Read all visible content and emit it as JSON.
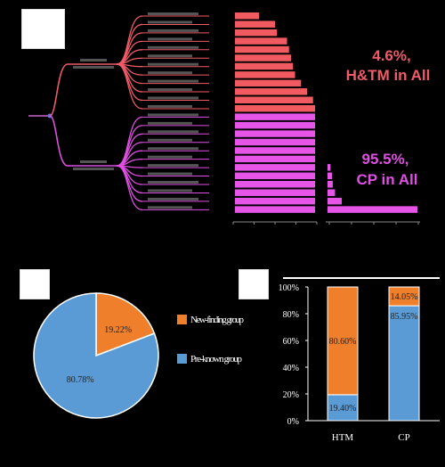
{
  "colors": {
    "htm": "#ef5b66",
    "cp": "#e04fe3",
    "orange": "#f07f2b",
    "blue": "#5b9bd5",
    "bar_top": "#f15a60",
    "bar_bottom": "#e655e8"
  },
  "annotations": {
    "htm_pct": "4.6%,",
    "htm_label": "H&TM in All",
    "cp_pct": "95.5%,",
    "cp_label": "CP in All"
  },
  "chart_data": [
    {
      "type": "bar",
      "orientation": "horizontal",
      "groups": [
        {
          "key": "htm",
          "count": 12
        },
        {
          "key": "cp",
          "count": 12
        }
      ],
      "values": [
        1.2,
        2.0,
        2.1,
        2.6,
        2.7,
        2.8,
        2.9,
        3.0,
        3.3,
        3.6,
        3.9,
        4.0,
        4.0,
        4.0,
        4.0,
        4.0,
        4.0,
        4.0,
        4.0,
        4.0,
        4.0,
        4.0,
        4.0,
        4.0
      ],
      "secondary_values": [
        0.4,
        0.6,
        0.7,
        1.0,
        1.9,
        12.0
      ]
    },
    {
      "type": "pie",
      "slices": [
        {
          "label": "New-finding group",
          "value": 19.22,
          "display": "19.22%",
          "color": "#f07f2b"
        },
        {
          "label": "Pre-known group",
          "value": 80.78,
          "display": "80.78%",
          "color": "#5b9bd5"
        }
      ],
      "legend": [
        "New-finding group",
        "Pre-known group"
      ]
    },
    {
      "type": "bar",
      "stacked": true,
      "categories": [
        "HTM",
        "CP"
      ],
      "series": [
        {
          "name": "Pre-known group",
          "values": [
            19.4,
            85.95
          ],
          "display": [
            "19.40%",
            "85.95%"
          ],
          "color": "#5b9bd5"
        },
        {
          "name": "New-finding group",
          "values": [
            80.6,
            14.05
          ],
          "display": [
            "80.60%",
            "14.05%"
          ],
          "color": "#f07f2b"
        }
      ],
      "ylim": [
        0,
        100
      ],
      "yticks": [
        "0%",
        "20%",
        "40%",
        "60%",
        "80%",
        "100%"
      ]
    }
  ]
}
